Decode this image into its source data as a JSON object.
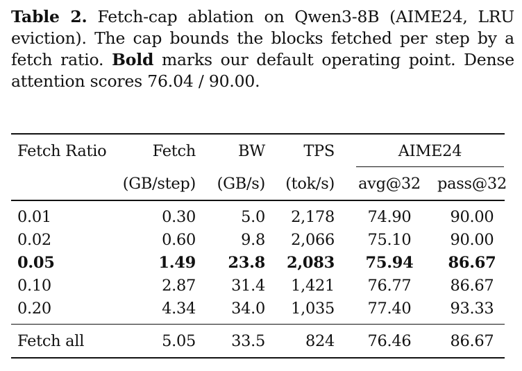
{
  "caption": {
    "label": "Table 2.",
    "text_before_bold": " Fetch-cap ablation on Qwen3-8B (AIME24, LRU eviction). The cap bounds the blocks fetched per step by a fetch ratio. ",
    "bold_word": "Bold",
    "text_after_bold": " marks our default operating point. Dense attention scores 76.04 / 90.00."
  },
  "header": {
    "col1": "Fetch Ratio",
    "col2": "Fetch",
    "col2_unit": "(GB/step)",
    "col3": "BW",
    "col3_unit": "(GB/s)",
    "col4": "TPS",
    "col4_unit": "(tok/s)",
    "group": "AIME24",
    "col5": "avg@32",
    "col6": "pass@32"
  },
  "rows": [
    {
      "ratio": "0.01",
      "fetch": "0.30",
      "bw": "5.0",
      "tps": "2,178",
      "avg": "74.90",
      "pass": "90.00",
      "bold": false
    },
    {
      "ratio": "0.02",
      "fetch": "0.60",
      "bw": "9.8",
      "tps": "2,066",
      "avg": "75.10",
      "pass": "90.00",
      "bold": false
    },
    {
      "ratio": "0.05",
      "fetch": "1.49",
      "bw": "23.8",
      "tps": "2,083",
      "avg": "75.94",
      "pass": "86.67",
      "bold": true
    },
    {
      "ratio": "0.10",
      "fetch": "2.87",
      "bw": "31.4",
      "tps": "1,421",
      "avg": "76.77",
      "pass": "86.67",
      "bold": false
    },
    {
      "ratio": "0.20",
      "fetch": "4.34",
      "bw": "34.0",
      "tps": "1,035",
      "avg": "77.40",
      "pass": "93.33",
      "bold": false
    }
  ],
  "footer_row": {
    "ratio": "Fetch all",
    "fetch": "5.05",
    "bw": "33.5",
    "tps": "824",
    "avg": "76.46",
    "pass": "86.67"
  }
}
